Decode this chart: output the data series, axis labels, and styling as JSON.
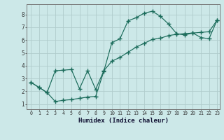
{
  "xlabel": "Humidex (Indice chaleur)",
  "bg_color": "#cce8e8",
  "grid_color": "#b0cccc",
  "line_color": "#1a6b5a",
  "xlim": [
    -0.5,
    23.3
  ],
  "ylim": [
    0.6,
    8.8
  ],
  "xticks": [
    0,
    1,
    2,
    3,
    4,
    5,
    6,
    7,
    8,
    9,
    10,
    11,
    12,
    13,
    14,
    15,
    16,
    17,
    18,
    19,
    20,
    21,
    22,
    23
  ],
  "yticks": [
    1,
    2,
    3,
    4,
    5,
    6,
    7,
    8
  ],
  "line1_x": [
    0,
    1,
    2,
    3,
    4,
    5,
    6,
    7,
    8,
    9,
    10,
    11,
    12,
    13,
    14,
    15,
    16,
    17,
    18,
    19,
    20,
    21,
    22,
    23
  ],
  "line1_y": [
    2.7,
    2.3,
    1.9,
    1.2,
    1.3,
    1.35,
    1.45,
    1.55,
    1.6,
    3.55,
    5.8,
    6.1,
    7.5,
    7.75,
    8.1,
    8.25,
    7.85,
    7.25,
    6.5,
    6.4,
    6.55,
    6.2,
    6.1,
    7.55
  ],
  "line2_x": [
    0,
    1,
    2,
    3,
    4,
    5,
    6,
    7,
    8,
    9,
    10,
    11,
    12,
    13,
    14,
    15,
    16,
    17,
    18,
    19,
    20,
    21,
    22,
    23
  ],
  "line2_y": [
    2.7,
    2.3,
    1.9,
    3.6,
    3.65,
    3.7,
    2.2,
    3.6,
    2.15,
    3.6,
    4.35,
    4.65,
    5.05,
    5.45,
    5.75,
    6.05,
    6.15,
    6.35,
    6.45,
    6.5,
    6.55,
    6.6,
    6.65,
    7.55
  ]
}
